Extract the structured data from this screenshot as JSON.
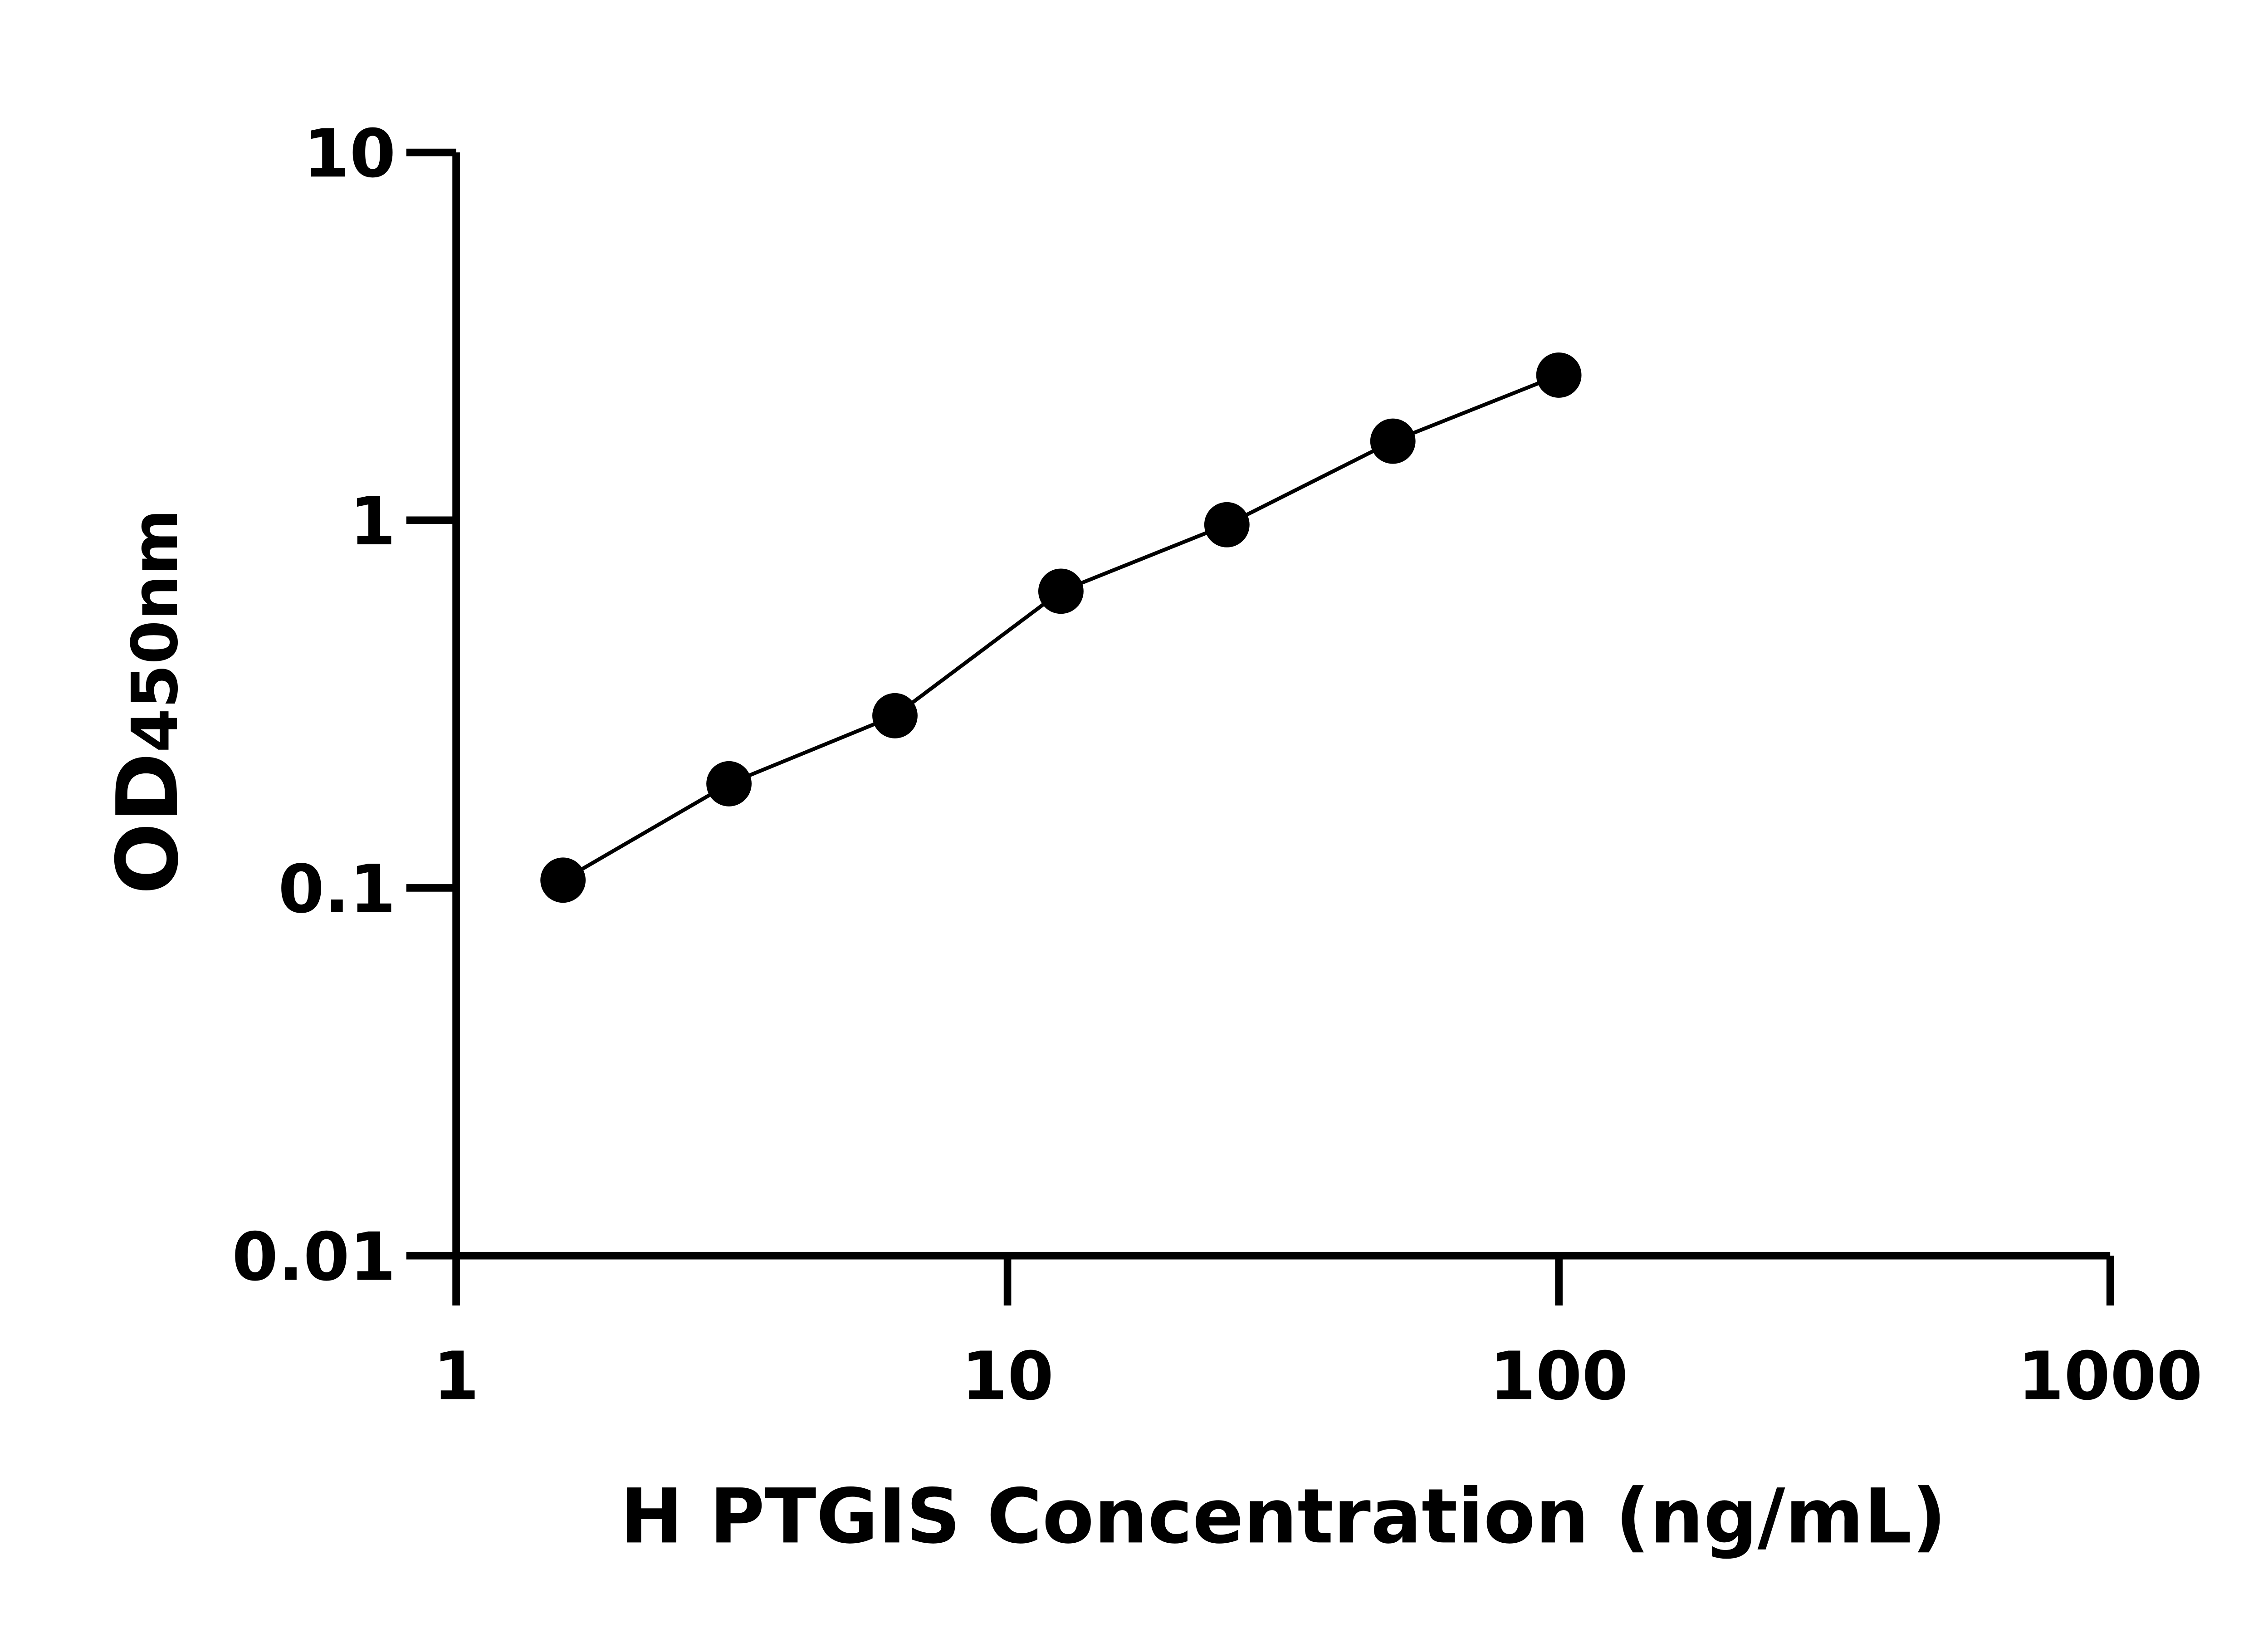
{
  "chart_data": {
    "type": "line",
    "title": "",
    "xlabel": "H PTGIS Concentration (ng/mL)",
    "ylabel_main": "OD",
    "ylabel_sub": "450nm",
    "x_scale": "log",
    "y_scale": "log",
    "xlim": [
      1,
      1000
    ],
    "ylim": [
      0.01,
      10
    ],
    "x_ticks": [
      "1",
      "10",
      "100",
      "1000"
    ],
    "y_ticks": [
      "0.01",
      "0.1",
      "1",
      "10"
    ],
    "grid": false,
    "legend": "none",
    "color": "#000000",
    "series": [
      {
        "x": [
          1.5625,
          3.125,
          6.25,
          12.5,
          25,
          50,
          100
        ],
        "y": [
          0.105,
          0.192,
          0.294,
          0.641,
          0.972,
          1.64,
          2.48
        ]
      }
    ]
  }
}
